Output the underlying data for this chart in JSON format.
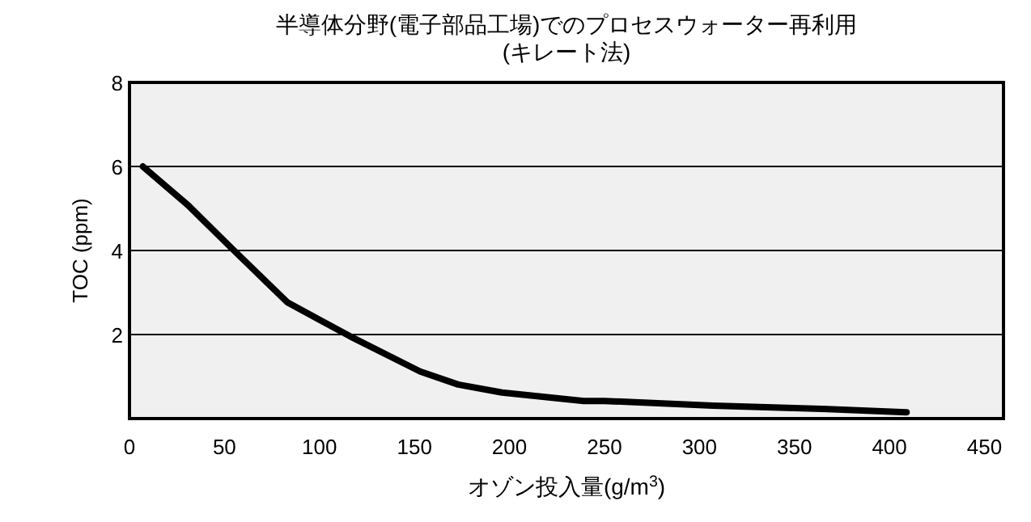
{
  "chart_data": {
    "type": "line",
    "title": "半導体分野(電子部品工場)でのプロセスウォーター再利用",
    "subtitle": "(キレート法)",
    "xlabel": "オゾン投入量(g/m$^{3}$)",
    "ylabel": "TOC (ppm)",
    "x": [
      7,
      31,
      55,
      83,
      100,
      116,
      153,
      173,
      196,
      239,
      250,
      307,
      364,
      409
    ],
    "series": [
      {
        "color": "#000000",
        "values": [
          6.0,
          5.07,
          4.0,
          2.77,
          2.35,
          1.96,
          1.12,
          0.81,
          0.62,
          0.42,
          0.42,
          0.31,
          0.23,
          0.15
        ]
      }
    ],
    "xlim": [
      0,
      460
    ],
    "ylim": [
      0,
      8
    ],
    "xticks": [
      0,
      50,
      100,
      150,
      200,
      250,
      300,
      350,
      400,
      450
    ],
    "yticks": [
      2,
      4,
      6,
      8
    ],
    "grid": "y",
    "marker": "none",
    "line_style": "solid"
  }
}
